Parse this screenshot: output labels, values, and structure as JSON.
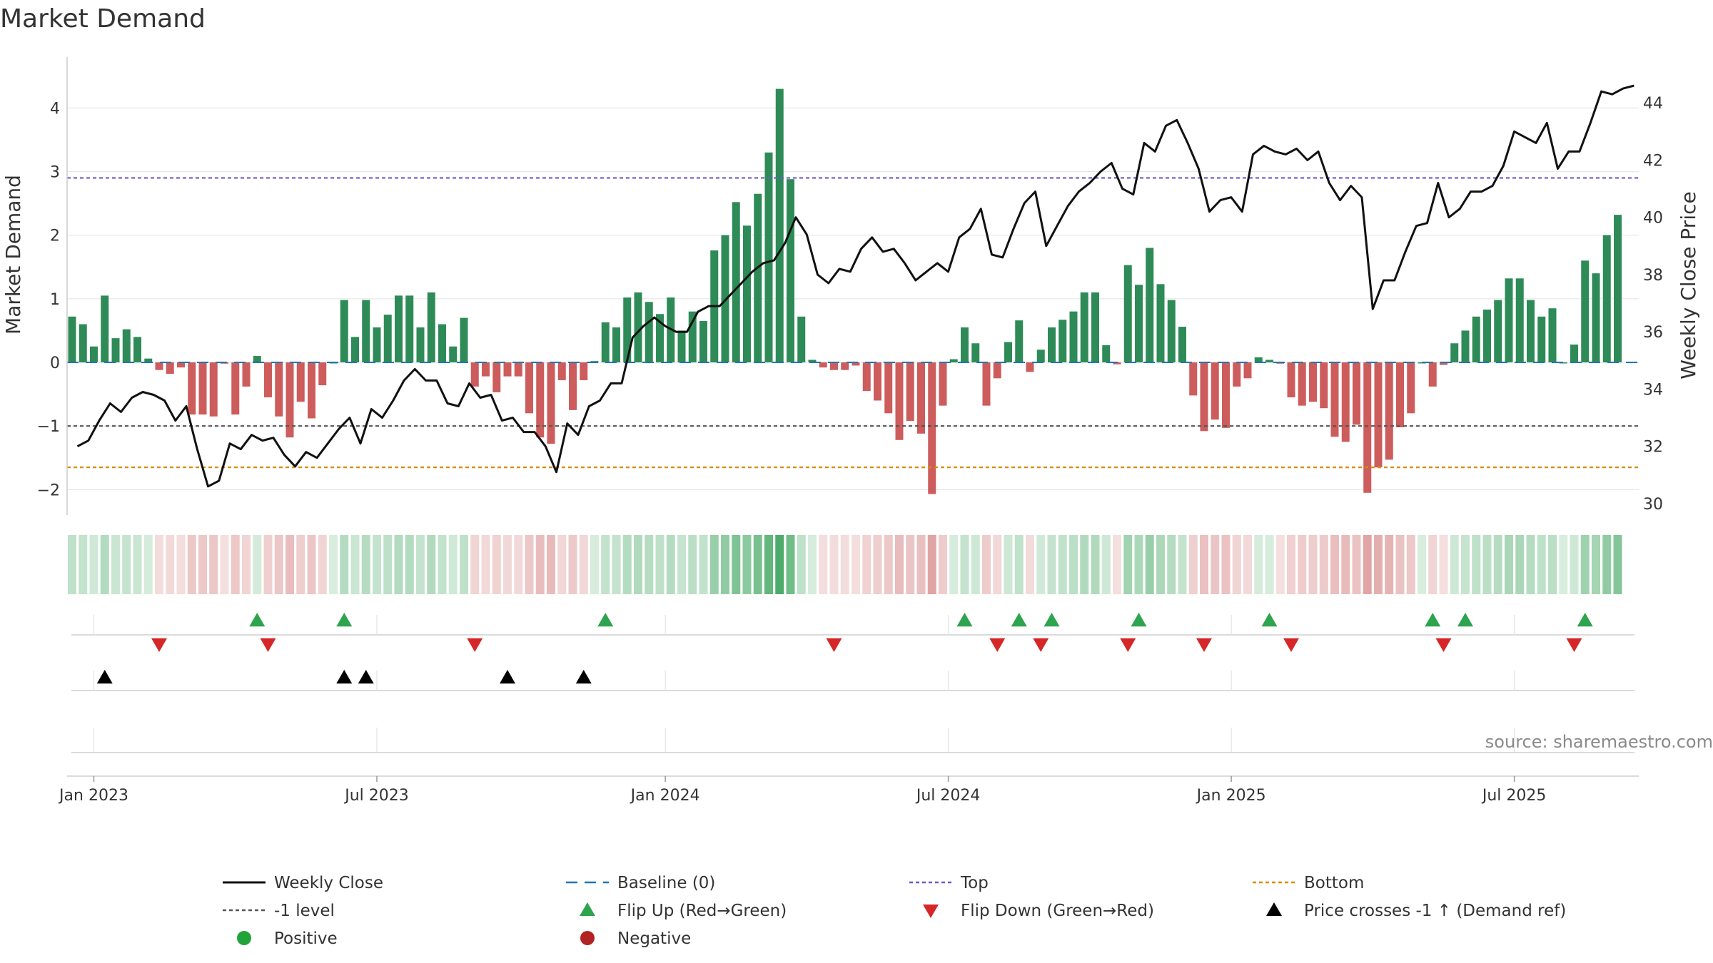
{
  "chart_data": {
    "type": "bar",
    "title": "Market Demand",
    "ylabel_left": "Market Demand",
    "ylabel_right": "Weekly Close Price",
    "source": "source: sharemaestro.com",
    "ylim_left": [
      -2.4,
      4.8
    ],
    "ylim_right": [
      29.6,
      45.6
    ],
    "yticks_left": [
      -2,
      -1,
      0,
      1,
      2,
      3,
      4
    ],
    "yticks_left_labels": [
      "−2",
      "−1",
      "0",
      "1",
      "2",
      "3",
      "4"
    ],
    "yticks_right": [
      30,
      32,
      34,
      36,
      38,
      40,
      42,
      44
    ],
    "yticks_right_labels": [
      "30",
      "32",
      "34",
      "36",
      "38",
      "40",
      "42",
      "44"
    ],
    "x_ticks": [
      {
        "label": "Jan 2023",
        "week": 2
      },
      {
        "label": "Jul 2023",
        "week": 28
      },
      {
        "label": "Jan 2024",
        "week": 54.5
      },
      {
        "label": "Jul 2024",
        "week": 80.5
      },
      {
        "label": "Jan 2025",
        "week": 106.5
      },
      {
        "label": "Jul 2025",
        "week": 132.5
      }
    ],
    "levels": {
      "top": 2.9,
      "minus_one": -1.0,
      "bottom": -1.65,
      "baseline": 0
    },
    "demand": [
      0.72,
      0.6,
      0.25,
      1.05,
      0.38,
      0.52,
      0.4,
      0.06,
      -0.12,
      -0.18,
      -0.08,
      -0.82,
      -0.82,
      -0.85,
      -0.02,
      -0.82,
      -0.38,
      0.1,
      -0.55,
      -0.85,
      -1.18,
      -0.62,
      -0.88,
      -0.36,
      0,
      0.98,
      0.4,
      0.98,
      0.55,
      0.75,
      1.05,
      1.05,
      0.55,
      1.1,
      0.6,
      0.25,
      0.7,
      -0.38,
      -0.22,
      -0.47,
      -0.22,
      -0.22,
      -0.8,
      -1.18,
      -1.28,
      -0.28,
      -0.75,
      -0.28,
      0.02,
      0.63,
      0.55,
      1.02,
      1.1,
      0.95,
      0.76,
      1.02,
      0.5,
      0.8,
      0.65,
      1.76,
      2.0,
      2.52,
      2.15,
      2.65,
      3.3,
      4.3,
      2.88,
      0.72,
      0.04,
      -0.08,
      -0.12,
      -0.12,
      -0.05,
      -0.45,
      -0.6,
      -0.8,
      -1.22,
      -0.92,
      -1.12,
      -2.07,
      -0.68,
      0.05,
      0.55,
      0.3,
      -0.68,
      -0.25,
      0.32,
      0.66,
      -0.15,
      0.2,
      0.55,
      0.67,
      0.8,
      1.1,
      1.1,
      0.27,
      -0.03,
      1.53,
      1.22,
      1.8,
      1.23,
      0.98,
      0.56,
      -0.52,
      -1.08,
      -0.9,
      -1.03,
      -0.38,
      -0.25,
      0.08,
      0.04,
      -0.02,
      -0.55,
      -0.68,
      -0.62,
      -0.72,
      -1.17,
      -1.25,
      -0.98,
      -2.05,
      -1.65,
      -1.53,
      -1.02,
      -0.8,
      0,
      -0.38,
      -0.04,
      0.3,
      0.5,
      0.72,
      0.83,
      0.98,
      1.32,
      1.32,
      0.98,
      0.72,
      0.85,
      0,
      0.28,
      1.6,
      1.4,
      2.0,
      2.32
    ],
    "price": [
      32.0,
      32.2,
      32.9,
      33.5,
      33.2,
      33.7,
      33.9,
      33.8,
      33.6,
      32.9,
      33.4,
      31.9,
      30.6,
      30.8,
      32.1,
      31.9,
      32.4,
      32.2,
      32.3,
      31.7,
      31.3,
      31.8,
      31.6,
      32.1,
      32.6,
      33.0,
      32.1,
      33.3,
      33.0,
      33.6,
      34.3,
      34.7,
      34.3,
      34.3,
      33.5,
      33.4,
      34.2,
      33.7,
      33.8,
      32.9,
      33.0,
      32.5,
      32.5,
      32.0,
      31.1,
      32.8,
      32.4,
      33.4,
      33.6,
      34.2,
      34.2,
      35.8,
      36.2,
      36.5,
      36.2,
      36.0,
      36.0,
      36.7,
      36.9,
      36.9,
      37.3,
      37.7,
      38.1,
      38.4,
      38.5,
      39.1,
      40.0,
      39.4,
      38.0,
      37.7,
      38.2,
      38.1,
      38.9,
      39.3,
      38.8,
      38.9,
      38.4,
      37.8,
      38.1,
      38.4,
      38.1,
      39.3,
      39.6,
      40.3,
      38.7,
      38.6,
      39.6,
      40.5,
      40.9,
      39.0,
      39.7,
      40.4,
      40.9,
      41.2,
      41.6,
      41.9,
      41.0,
      40.8,
      42.6,
      42.3,
      43.2,
      43.4,
      42.6,
      41.7,
      40.2,
      40.6,
      40.7,
      40.2,
      42.2,
      42.5,
      42.3,
      42.2,
      42.4,
      42.0,
      42.3,
      41.2,
      40.6,
      41.1,
      40.7,
      36.8,
      37.8,
      37.8,
      38.8,
      39.7,
      39.8,
      41.2,
      40.0,
      40.3,
      40.9,
      40.9,
      41.1,
      41.8,
      43.0,
      42.8,
      42.6,
      43.3,
      41.7,
      42.3,
      42.3,
      43.3,
      44.4,
      44.3,
      44.5,
      44.6
    ],
    "flip_up_weeks": [
      17,
      25,
      49,
      82,
      87,
      90,
      98,
      110,
      125,
      128,
      139
    ],
    "flip_down_weeks": [
      8,
      18,
      37,
      70,
      85,
      89,
      97,
      104,
      112,
      126,
      138
    ],
    "price_cross_weeks": [
      3,
      25,
      27,
      40,
      47
    ],
    "colors": {
      "positive": "#2e8b57",
      "negative": "#cd5c5c",
      "price_line": "#111111",
      "top": "#6a5acd",
      "minus_one": "#555555",
      "bottom": "#d98b00",
      "baseline": "#1f77b4",
      "flip_up": "#2ea44f",
      "flip_down": "#d62728",
      "cross": "#000000",
      "positive_dot": "#22a33a",
      "negative_dot": "#b22222"
    },
    "legend": [
      {
        "label": "Weekly Close",
        "kind": "solid",
        "color": "#111111"
      },
      {
        "label": "Baseline (0)",
        "kind": "dashed",
        "color": "#1f77b4"
      },
      {
        "label": "Top",
        "kind": "dotted",
        "color": "#6a5acd"
      },
      {
        "label": "Bottom",
        "kind": "dotted",
        "color": "#d98b00"
      },
      {
        "label": "-1 level",
        "kind": "dotted",
        "color": "#555555"
      },
      {
        "label": "Flip Up (Red→Green)",
        "kind": "tri-up",
        "color": "#2ea44f"
      },
      {
        "label": "Flip Down (Green→Red)",
        "kind": "tri-down",
        "color": "#d62728"
      },
      {
        "label": "Price crosses -1 ↑ (Demand ref)",
        "kind": "tri-up",
        "color": "#000000"
      },
      {
        "label": "Positive",
        "kind": "dot",
        "color": "#22a33a"
      },
      {
        "label": "Negative",
        "kind": "dot",
        "color": "#b22222"
      }
    ]
  }
}
